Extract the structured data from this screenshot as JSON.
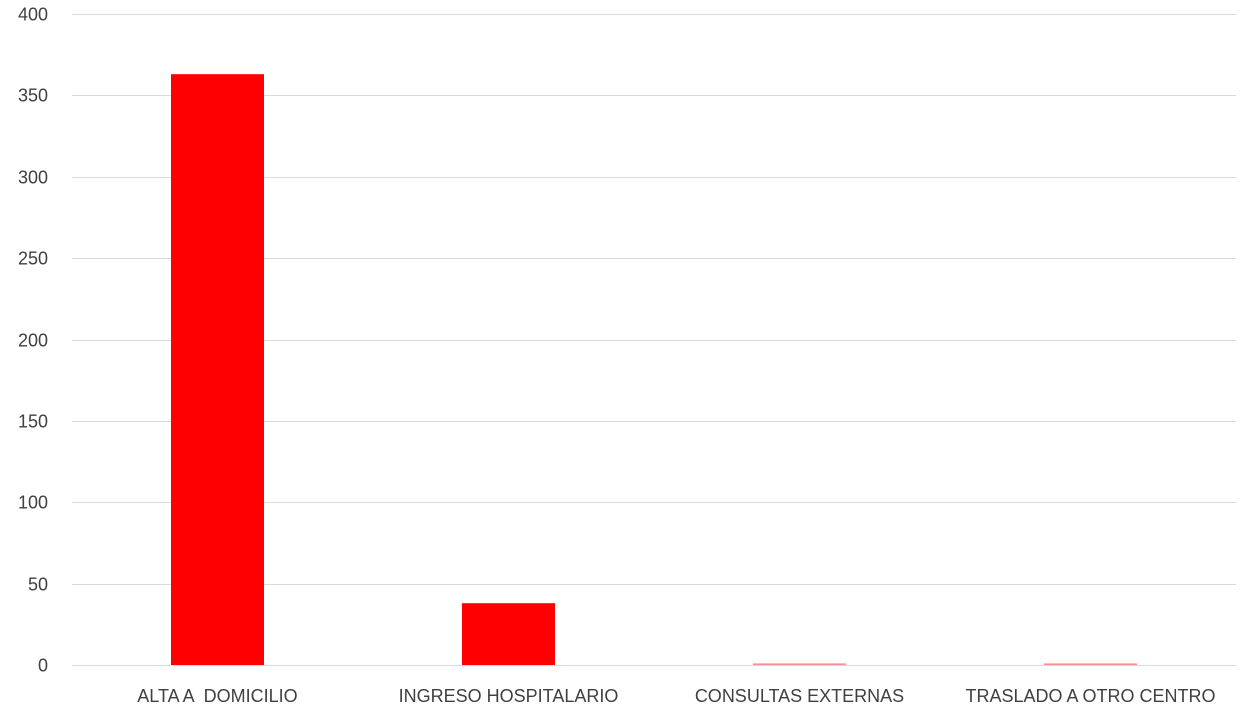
{
  "chart_data": {
    "type": "bar",
    "categories": [
      "ALTA A  DOMICILIO",
      "INGRESO HOSPITALARIO",
      "CONSULTAS EXTERNAS",
      "TRASLADO A OTRO CENTRO"
    ],
    "values": [
      363,
      38,
      1,
      1
    ],
    "title": "",
    "xlabel": "",
    "ylabel": "",
    "ylim": [
      0,
      400
    ],
    "yticks": [
      0,
      50,
      100,
      150,
      200,
      250,
      300,
      350,
      400
    ],
    "grid": true,
    "legend": "none",
    "bar_color": "#ff0000",
    "grid_color": "#d9d9d9",
    "text_color": "#404040"
  }
}
